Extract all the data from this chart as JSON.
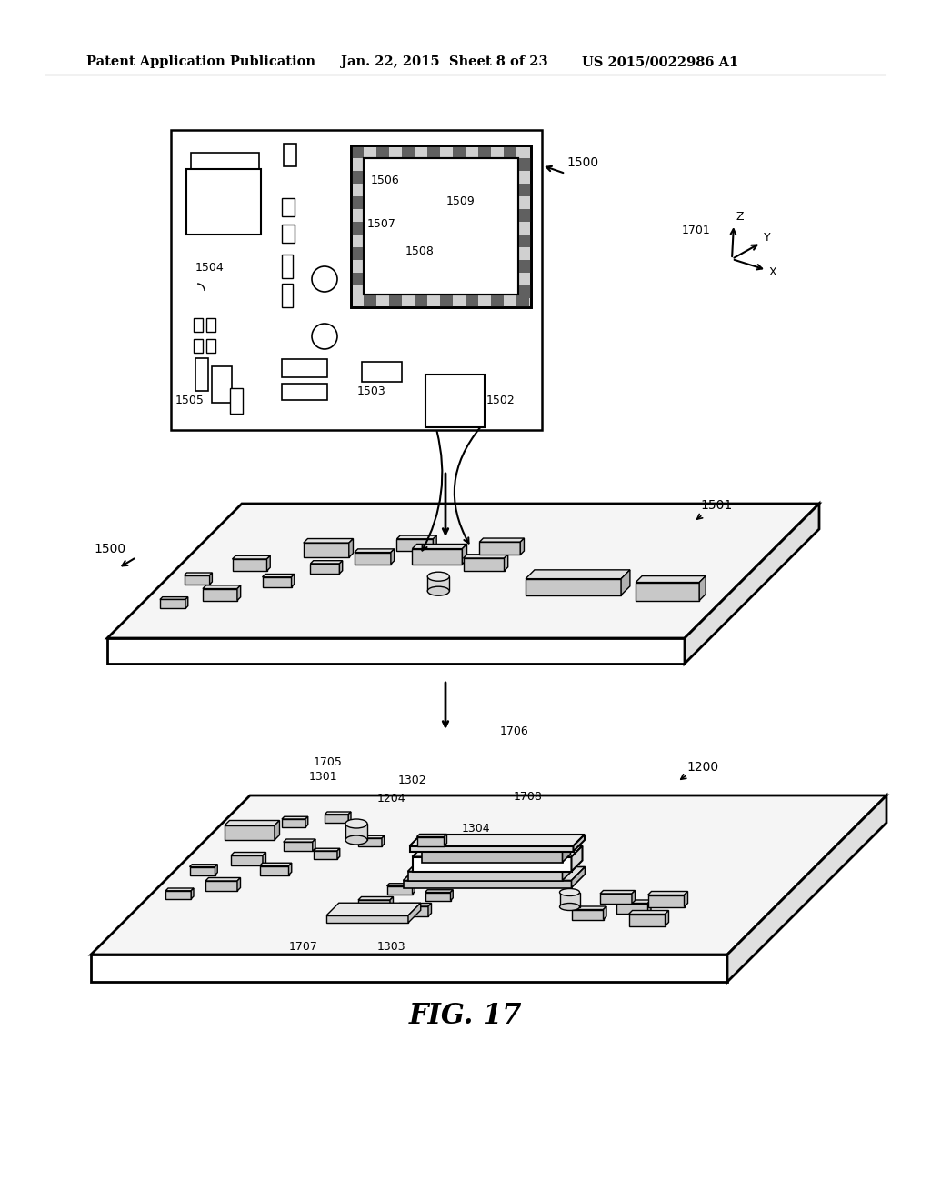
{
  "bg_color": "#ffffff",
  "header_text": "Patent Application Publication",
  "header_date": "Jan. 22, 2015  Sheet 8 of 23",
  "header_patent": "US 2015/0022986 A1",
  "fig_label": "FIG. 17"
}
